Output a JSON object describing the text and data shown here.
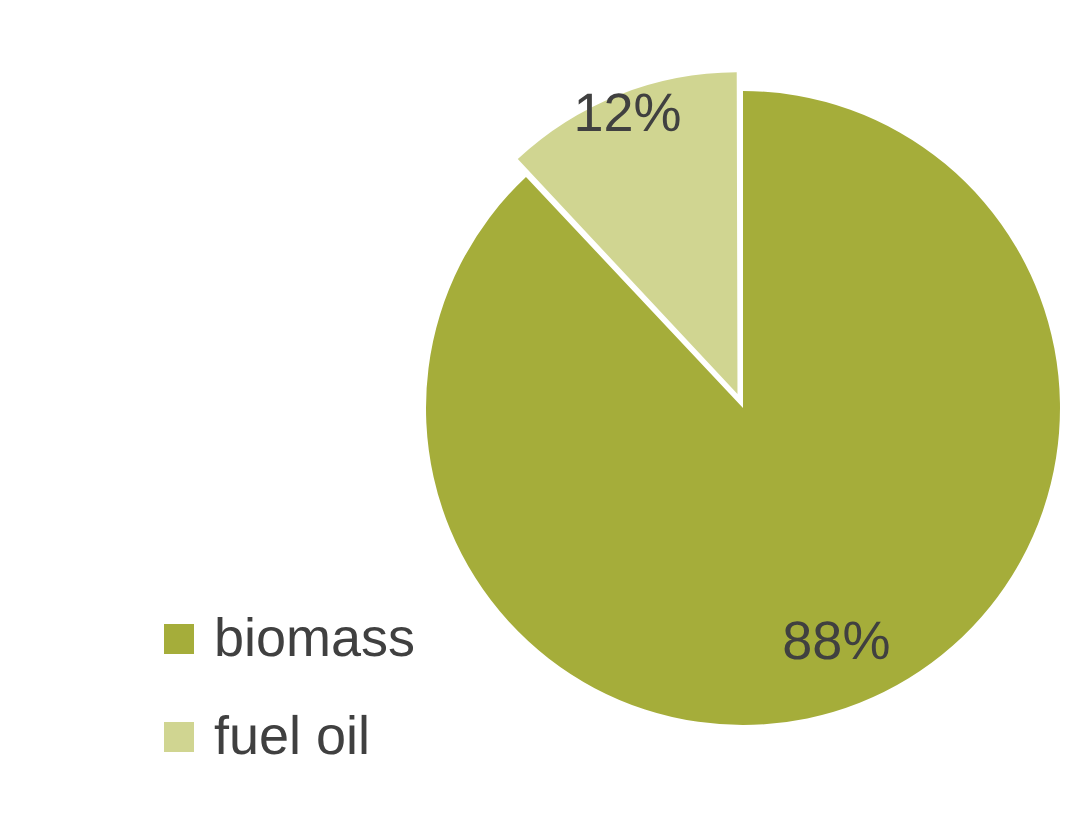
{
  "chart_data": {
    "type": "pie",
    "categories": [
      "biomass",
      "fuel oil"
    ],
    "values": [
      88,
      12
    ],
    "colors": [
      "#a5ad3a",
      "#d0d591"
    ],
    "value_labels": [
      "88%",
      "12%"
    ],
    "legend": "bottom left"
  }
}
